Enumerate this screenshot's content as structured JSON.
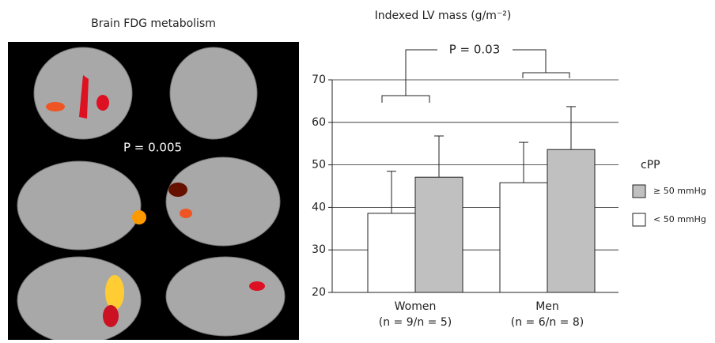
{
  "image_panel": {
    "title": "Brain FDG metabolism",
    "annotation": "P = 0.005"
  },
  "chart_data": {
    "type": "bar",
    "title": "Indexed LV mass (g/m⁻²)",
    "categories": [
      "Women",
      "Men"
    ],
    "category_notes": [
      "(n = 9/n = 5)",
      "(n = 6/n = 8)"
    ],
    "series": [
      {
        "name": "< 50 mmHg",
        "color": "#ffffff",
        "values": [
          38.6,
          45.8
        ],
        "errors": [
          9.9,
          9.5
        ]
      },
      {
        "name": "≥ 50 mmHg",
        "color": "#c0c0c0",
        "values": [
          47.1,
          53.6
        ],
        "errors": [
          9.7,
          10.1
        ]
      }
    ],
    "ylim": [
      20,
      70
    ],
    "yticks": [
      20,
      30,
      40,
      50,
      60,
      70
    ],
    "grid": true,
    "legend_title": "cPP",
    "annotation": "P = 0.03"
  }
}
